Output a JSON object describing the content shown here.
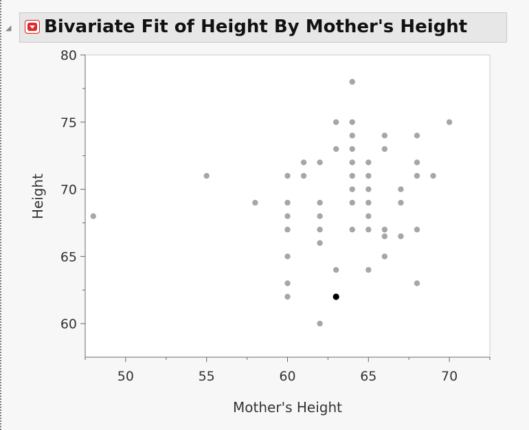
{
  "report": {
    "title": "Bivariate Fit of Height By Mother's Height",
    "outline_glyph": "collapse-triangle-icon",
    "menu_icon": "red-triangle-menu-icon"
  },
  "chart_data": {
    "type": "scatter",
    "title": "",
    "xlabel": "Mother's Height",
    "ylabel": "Height",
    "xlim": [
      47.5,
      72.5
    ],
    "ylim": [
      57.5,
      80
    ],
    "xticks": [
      50,
      55,
      60,
      65,
      70
    ],
    "yticks": [
      60,
      65,
      70,
      75,
      80
    ],
    "grid": false,
    "point_color": "#a6a6a6",
    "highlight_color": "#000000",
    "points": [
      [
        48,
        68
      ],
      [
        55,
        71
      ],
      [
        58,
        69
      ],
      [
        60,
        71
      ],
      [
        60,
        69
      ],
      [
        60,
        68
      ],
      [
        60,
        67
      ],
      [
        60,
        65
      ],
      [
        60,
        63
      ],
      [
        60,
        62
      ],
      [
        61,
        72
      ],
      [
        61,
        71
      ],
      [
        62,
        72
      ],
      [
        62,
        69
      ],
      [
        62,
        68
      ],
      [
        62,
        67
      ],
      [
        62,
        66
      ],
      [
        62,
        60
      ],
      [
        63,
        75
      ],
      [
        63,
        73
      ],
      [
        63,
        64
      ],
      [
        64,
        78
      ],
      [
        64,
        75
      ],
      [
        64,
        74
      ],
      [
        64,
        73
      ],
      [
        64,
        72
      ],
      [
        64,
        71
      ],
      [
        64,
        70
      ],
      [
        64,
        69
      ],
      [
        64,
        67
      ],
      [
        65,
        72
      ],
      [
        65,
        71
      ],
      [
        65,
        70
      ],
      [
        65,
        69
      ],
      [
        65,
        68
      ],
      [
        65,
        67
      ],
      [
        65,
        64
      ],
      [
        66,
        74
      ],
      [
        66,
        73
      ],
      [
        66,
        67
      ],
      [
        66,
        66.5
      ],
      [
        66,
        65
      ],
      [
        67,
        70
      ],
      [
        67,
        69
      ],
      [
        67,
        66.5
      ],
      [
        68,
        74
      ],
      [
        68,
        72
      ],
      [
        68,
        71
      ],
      [
        68,
        67
      ],
      [
        68,
        63
      ],
      [
        69,
        71
      ],
      [
        70,
        75
      ]
    ],
    "highlighted_points": [
      [
        63,
        62
      ]
    ]
  }
}
